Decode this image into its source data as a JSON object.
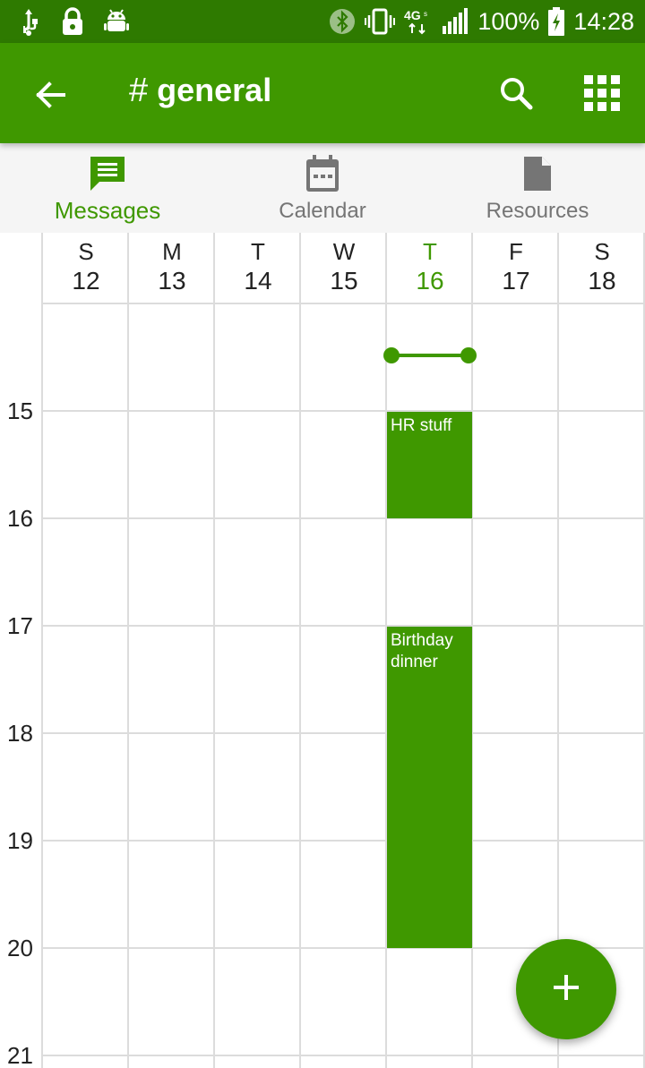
{
  "status_bar": {
    "left_icons": [
      "usb-icon",
      "lock-icon",
      "android-icon"
    ],
    "right_icons": [
      "bluetooth-icon",
      "vibrate-icon",
      "network-4g-icon",
      "signal-icon",
      "battery-charging-icon"
    ],
    "battery": "100%",
    "time": "14:28"
  },
  "app_bar": {
    "hash": "#",
    "channel": "general",
    "icons": [
      "back-arrow-icon",
      "search-icon",
      "apps-grid-icon"
    ],
    "background_color": "#3f9800"
  },
  "tabs": [
    {
      "label": "Messages",
      "icon": "message-icon",
      "active": true
    },
    {
      "label": "Calendar",
      "icon": "calendar-icon",
      "active": false
    },
    {
      "label": "Resources",
      "icon": "file-icon",
      "active": false
    }
  ],
  "calendar": {
    "days": [
      {
        "dow": "S",
        "num": "12"
      },
      {
        "dow": "M",
        "num": "13"
      },
      {
        "dow": "T",
        "num": "14"
      },
      {
        "dow": "W",
        "num": "15"
      },
      {
        "dow": "T",
        "num": "16",
        "today": true
      },
      {
        "dow": "F",
        "num": "17"
      },
      {
        "dow": "S",
        "num": "18"
      }
    ],
    "hours": [
      "15",
      "16",
      "17",
      "18",
      "19",
      "20",
      "21"
    ],
    "events": [
      {
        "title": "HR stuff",
        "day": "16",
        "start": "15",
        "end": "16"
      },
      {
        "title": "Birthday dinner",
        "day": "16",
        "start": "17",
        "end": "20"
      }
    ]
  },
  "fab": {
    "icon": "plus-icon"
  }
}
